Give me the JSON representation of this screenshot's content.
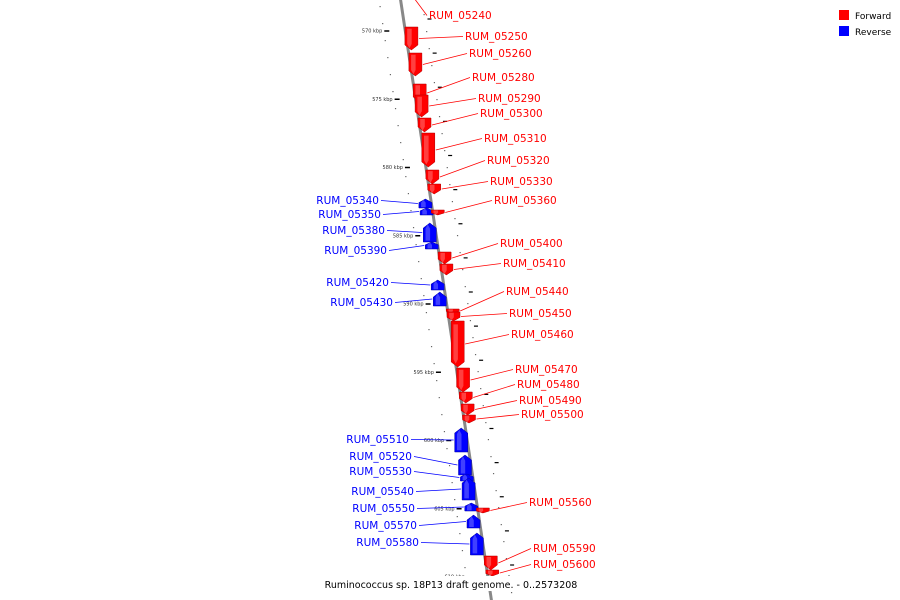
{
  "legend": {
    "forward_label": "Forward",
    "reverse_label": "Reverse"
  },
  "colors": {
    "forward": "#ff0000",
    "reverse": "#0000ff",
    "backbone": "#888888"
  },
  "caption": "Ruminococcus sp. 18P13 draft genome. - 0..2573208",
  "ticks": [
    {
      "label": "570 kbp",
      "kbp": 570
    },
    {
      "label": "575 kbp",
      "kbp": 575
    },
    {
      "label": "580 kbp",
      "kbp": 580
    },
    {
      "label": "585 kbp",
      "kbp": 585
    },
    {
      "label": "590 kbp",
      "kbp": 590
    },
    {
      "label": "595 kbp",
      "kbp": 595
    },
    {
      "label": "600 kbp",
      "kbp": 600
    },
    {
      "label": "605 kbp",
      "kbp": 605
    },
    {
      "label": "610 kbp",
      "kbp": 610
    }
  ],
  "genes": [
    {
      "name": "RUM_05240",
      "strand": "forward"
    },
    {
      "name": "RUM_05250",
      "strand": "forward"
    },
    {
      "name": "RUM_05260",
      "strand": "forward"
    },
    {
      "name": "RUM_05280",
      "strand": "forward"
    },
    {
      "name": "RUM_05290",
      "strand": "forward"
    },
    {
      "name": "RUM_05300",
      "strand": "forward"
    },
    {
      "name": "RUM_05310",
      "strand": "forward"
    },
    {
      "name": "RUM_05320",
      "strand": "forward"
    },
    {
      "name": "RUM_05330",
      "strand": "forward"
    },
    {
      "name": "RUM_05340",
      "strand": "reverse"
    },
    {
      "name": "RUM_05350",
      "strand": "reverse"
    },
    {
      "name": "RUM_05360",
      "strand": "forward"
    },
    {
      "name": "RUM_05380",
      "strand": "reverse"
    },
    {
      "name": "RUM_05390",
      "strand": "reverse"
    },
    {
      "name": "RUM_05400",
      "strand": "forward"
    },
    {
      "name": "RUM_05410",
      "strand": "forward"
    },
    {
      "name": "RUM_05420",
      "strand": "reverse"
    },
    {
      "name": "RUM_05430",
      "strand": "reverse"
    },
    {
      "name": "RUM_05440",
      "strand": "forward"
    },
    {
      "name": "RUM_05450",
      "strand": "forward"
    },
    {
      "name": "RUM_05460",
      "strand": "forward"
    },
    {
      "name": "RUM_05470",
      "strand": "forward"
    },
    {
      "name": "RUM_05480",
      "strand": "forward"
    },
    {
      "name": "RUM_05490",
      "strand": "forward"
    },
    {
      "name": "RUM_05500",
      "strand": "forward"
    },
    {
      "name": "RUM_05510",
      "strand": "reverse"
    },
    {
      "name": "RUM_05520",
      "strand": "reverse"
    },
    {
      "name": "RUM_05530",
      "strand": "reverse"
    },
    {
      "name": "RUM_05540",
      "strand": "reverse"
    },
    {
      "name": "RUM_05550",
      "strand": "reverse"
    },
    {
      "name": "RUM_05560",
      "strand": "forward"
    },
    {
      "name": "RUM_05570",
      "strand": "reverse"
    },
    {
      "name": "RUM_05580",
      "strand": "reverse"
    },
    {
      "name": "RUM_05590",
      "strand": "forward"
    },
    {
      "name": "RUM_05600",
      "strand": "forward"
    }
  ]
}
